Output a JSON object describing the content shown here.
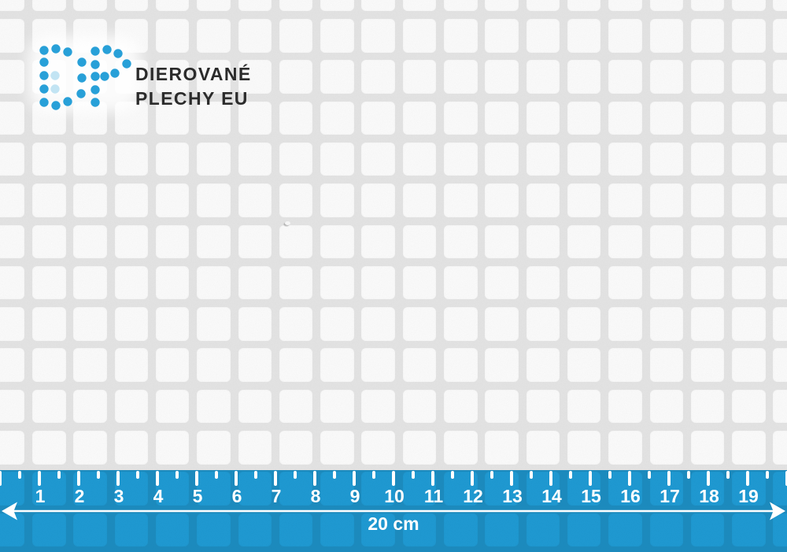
{
  "colors": {
    "brand_blue": "#28a0d8",
    "ruler_blue": "#1f9cd6",
    "sheet_web_gray": "#e4e4e4",
    "hole_white": "#fcfcfc",
    "logo_text_dark": "#2b2b2b",
    "ruler_marking_white": "#ffffff"
  },
  "logo": {
    "monogram": "DP",
    "wordmark_line1": "DIEROVANÉ",
    "wordmark_line2": "PLECHY EU"
  },
  "ruler": {
    "numbers": [
      "1",
      "2",
      "3",
      "4",
      "5",
      "6",
      "7",
      "8",
      "9",
      "10",
      "11",
      "12",
      "13",
      "14",
      "15",
      "16",
      "17",
      "18",
      "19"
    ],
    "length_label": "20 cm"
  }
}
